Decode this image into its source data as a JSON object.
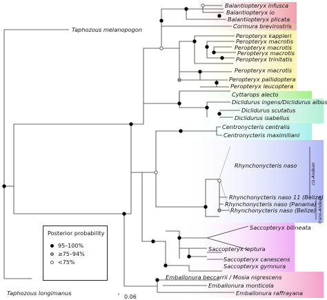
{
  "legend": {
    "title": "Posterior probability",
    "items": [
      {
        "label": "95–100%",
        "fill": "#000000",
        "stroke": "#000000"
      },
      {
        "label": "≥75–94%",
        "fill": "#999999",
        "stroke": "#555555"
      },
      {
        "label": "<75%",
        "fill": "#ffffff",
        "stroke": "#555555"
      }
    ]
  },
  "scale_label": "0.06",
  "outgroups": [
    "Taphozous melanopogon",
    "Taphozous longimanus"
  ],
  "side_labels": [
    "cis-Andean",
    "trans-Andean"
  ],
  "taxa": [
    "Balantiopteryx infusca",
    "Balantiopteryx io",
    "Balantiopteryx plicata",
    "Cormura brevirostris",
    "Peropteryx kappleri",
    "Peropteryx macrotis",
    "Peropteryx macrotis",
    "Peropteryx macrotis",
    "Peropteryx trinitatis",
    "Peropteryx macrotis",
    "Peropteryx pallidoptera",
    "Peropteryx leucoptera",
    "Cyttarops alecto",
    "Diclidurus ingens/Diclidurus albus",
    "Diclidurus scutatus",
    "Diclidurus isabellus",
    "Centronycteris centralis",
    "Centronycteris maximiliani",
    "Rhynchonycteris naso",
    "Rhynchonycteris naso 11 (Belize)",
    "Rhynchonycteris naso (Panama)",
    "Rhynchonycteris naso (Belize)",
    "Saccopteryx bilineata",
    "Saccopteryx leptura",
    "Saccopteryx canescens",
    "Saccopteryx gymnura",
    "Emballonura beccarrii / Mosia nigrescens",
    "Emballonura monticola",
    "Emballonura raffrayana"
  ],
  "clade_colors": {
    "balantiopteryx": "#f2a0a8",
    "cormura": "#f0b0a4",
    "peropteryx": "#fbf3b0",
    "cyttarops": "#a8ec8c",
    "diclidurus": "#b4f0d8",
    "centronycteris": "#a8f0ec",
    "rhynchonycteris": "#b0b8f6",
    "saccopteryx": "#f0aaf4",
    "emballonura": "#f4a0c8"
  }
}
